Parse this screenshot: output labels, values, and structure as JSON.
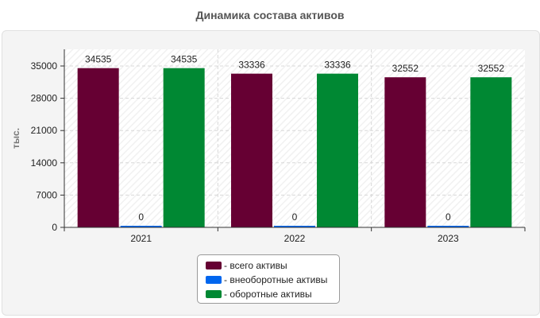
{
  "chart_data": {
    "type": "bar",
    "title": "Динамика состава активов",
    "ylabel": "тыс.",
    "xlabel": "",
    "categories": [
      "2021",
      "2022",
      "2023"
    ],
    "series": [
      {
        "name": "- всего активы",
        "color": "#660033",
        "values": [
          34535,
          33336,
          32552
        ]
      },
      {
        "name": "- внеоборотные активы",
        "color": "#0066ee",
        "values": [
          0,
          0,
          0
        ]
      },
      {
        "name": "- оборотные активы",
        "color": "#008833",
        "values": [
          34535,
          33336,
          32552
        ]
      }
    ],
    "ylim": [
      0,
      35000
    ],
    "yticks": [
      0,
      7000,
      14000,
      21000,
      28000,
      35000
    ],
    "grid": true,
    "legend_position": "bottom-center"
  }
}
